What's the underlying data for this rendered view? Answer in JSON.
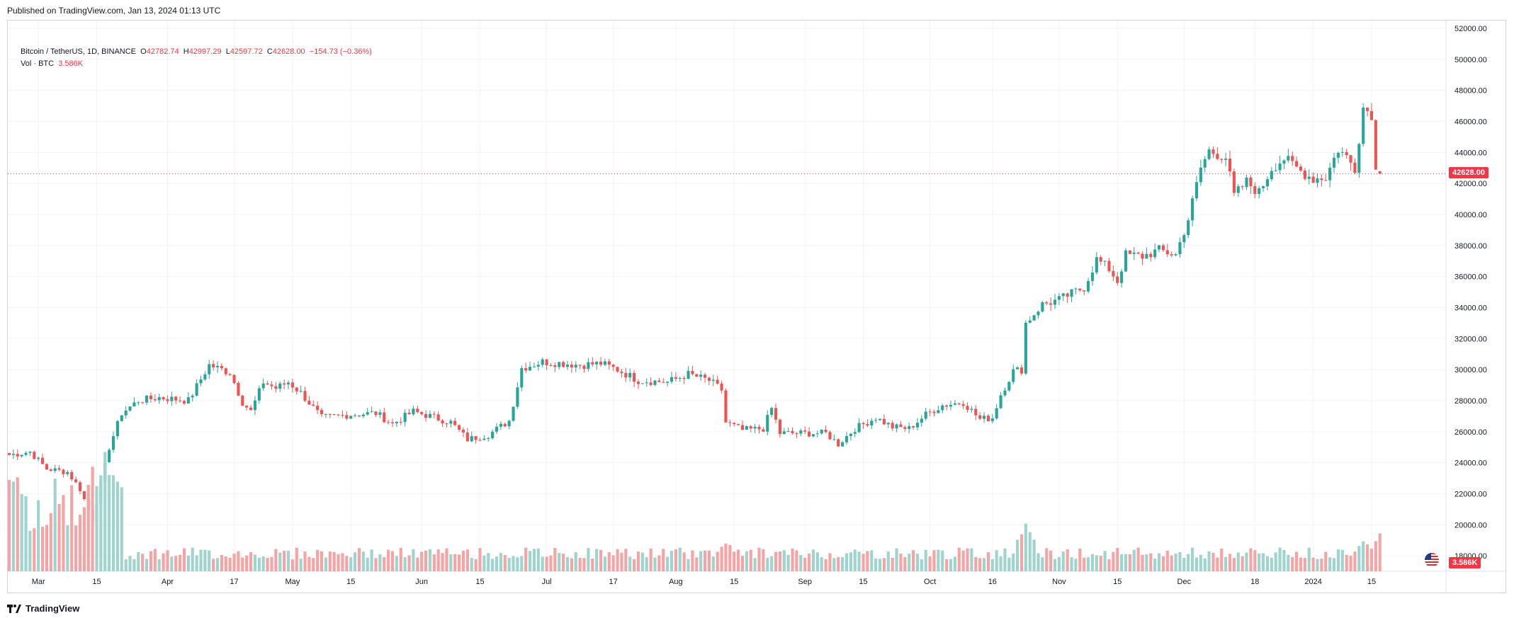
{
  "header": {
    "published": "Published on TradingView.com, Jan 13, 2024 01:13 UTC"
  },
  "legend": {
    "symbol": "Bitcoin / TetherUS, 1D, BINANCE",
    "open_label": "O",
    "open": "42782.74",
    "high_label": "H",
    "high": "42997.29",
    "low_label": "L",
    "low": "42597.72",
    "close_label": "C",
    "close": "42628.00",
    "change": "−154.73 (−0.36%)",
    "vol_label": "Vol · BTC",
    "vol_value": "3.586K"
  },
  "badges": {
    "last_price": "42628.00",
    "last_volume": "3.586K"
  },
  "footer": {
    "brand": "TradingView"
  },
  "colors": {
    "up": "#26a69a",
    "down": "#ef5350",
    "vol_up": "#9ed4cd",
    "vol_down": "#f5a3a3",
    "grid": "#f0f3fa",
    "price_line": "#f23645"
  },
  "icons": {
    "flag": "us-flag-icon",
    "logo": "tradingview-logo-icon"
  },
  "chart_data": {
    "type": "candlestick",
    "symbol": "BTCUSDT",
    "interval": "1D",
    "exchange": "BINANCE",
    "y_ticks": [
      18000,
      20000,
      22000,
      24000,
      26000,
      28000,
      30000,
      32000,
      34000,
      36000,
      38000,
      40000,
      42000,
      44000,
      46000,
      48000,
      50000,
      52000
    ],
    "y_tick_labels": [
      "18000.00",
      "20000.00",
      "22000.00",
      "24000.00",
      "26000.00",
      "28000.00",
      "30000.00",
      "32000.00",
      "34000.00",
      "36000.00",
      "38000.00",
      "40000.00",
      "42000.00",
      "44000.00",
      "46000.00",
      "48000.00",
      "50000.00",
      "52000.00"
    ],
    "ylim": [
      17000,
      52500
    ],
    "x_ticks": [
      {
        "label": "Mar",
        "day": 7
      },
      {
        "label": "15",
        "day": 21
      },
      {
        "label": "Apr",
        "day": 38
      },
      {
        "label": "17",
        "day": 54
      },
      {
        "label": "May",
        "day": 68
      },
      {
        "label": "15",
        "day": 82
      },
      {
        "label": "Jun",
        "day": 99
      },
      {
        "label": "15",
        "day": 113
      },
      {
        "label": "Jul",
        "day": 129
      },
      {
        "label": "17",
        "day": 145
      },
      {
        "label": "Aug",
        "day": 160
      },
      {
        "label": "15",
        "day": 174
      },
      {
        "label": "Sep",
        "day": 191
      },
      {
        "label": "15",
        "day": 205
      },
      {
        "label": "Oct",
        "day": 221
      },
      {
        "label": "16",
        "day": 236
      },
      {
        "label": "Nov",
        "day": 252
      },
      {
        "label": "15",
        "day": 266
      },
      {
        "label": "Dec",
        "day": 282
      },
      {
        "label": "18",
        "day": 299
      },
      {
        "label": "2024",
        "day": 313
      },
      {
        "label": "15",
        "day": 327
      }
    ],
    "last_close": 42628.0,
    "anchors": [
      {
        "d": 0,
        "p": 24500
      },
      {
        "d": 5,
        "p": 24700
      },
      {
        "d": 9,
        "p": 23600
      },
      {
        "d": 14,
        "p": 23400
      },
      {
        "d": 17,
        "p": 22300
      },
      {
        "d": 20,
        "p": 20300
      },
      {
        "d": 24,
        "p": 25000
      },
      {
        "d": 27,
        "p": 27200
      },
      {
        "d": 31,
        "p": 28000
      },
      {
        "d": 36,
        "p": 28200
      },
      {
        "d": 43,
        "p": 28000
      },
      {
        "d": 48,
        "p": 30300
      },
      {
        "d": 53,
        "p": 29800
      },
      {
        "d": 56,
        "p": 27900
      },
      {
        "d": 58,
        "p": 27300
      },
      {
        "d": 61,
        "p": 29200
      },
      {
        "d": 64,
        "p": 28800
      },
      {
        "d": 67,
        "p": 29200
      },
      {
        "d": 70,
        "p": 28500
      },
      {
        "d": 75,
        "p": 26900
      },
      {
        "d": 82,
        "p": 27100
      },
      {
        "d": 88,
        "p": 27200
      },
      {
        "d": 92,
        "p": 26500
      },
      {
        "d": 97,
        "p": 27300
      },
      {
        "d": 101,
        "p": 27000
      },
      {
        "d": 106,
        "p": 26600
      },
      {
        "d": 110,
        "p": 25500
      },
      {
        "d": 115,
        "p": 25800
      },
      {
        "d": 120,
        "p": 26700
      },
      {
        "d": 123,
        "p": 30100
      },
      {
        "d": 128,
        "p": 30500
      },
      {
        "d": 133,
        "p": 30400
      },
      {
        "d": 137,
        "p": 30300
      },
      {
        "d": 142,
        "p": 30400
      },
      {
        "d": 146,
        "p": 30000
      },
      {
        "d": 151,
        "p": 29300
      },
      {
        "d": 158,
        "p": 29200
      },
      {
        "d": 163,
        "p": 29700
      },
      {
        "d": 168,
        "p": 29300
      },
      {
        "d": 171,
        "p": 28700
      },
      {
        "d": 172,
        "p": 26600
      },
      {
        "d": 176,
        "p": 26100
      },
      {
        "d": 181,
        "p": 26200
      },
      {
        "d": 183,
        "p": 27500
      },
      {
        "d": 185,
        "p": 25900
      },
      {
        "d": 192,
        "p": 25900
      },
      {
        "d": 196,
        "p": 25900
      },
      {
        "d": 199,
        "p": 25200
      },
      {
        "d": 203,
        "p": 26200
      },
      {
        "d": 208,
        "p": 26900
      },
      {
        "d": 212,
        "p": 26300
      },
      {
        "d": 216,
        "p": 26200
      },
      {
        "d": 220,
        "p": 27100
      },
      {
        "d": 224,
        "p": 27700
      },
      {
        "d": 229,
        "p": 27900
      },
      {
        "d": 233,
        "p": 26800
      },
      {
        "d": 236,
        "p": 26900
      },
      {
        "d": 238,
        "p": 28400
      },
      {
        "d": 241,
        "p": 29900
      },
      {
        "d": 243,
        "p": 30000
      },
      {
        "d": 244,
        "p": 33000
      },
      {
        "d": 248,
        "p": 34200
      },
      {
        "d": 252,
        "p": 34500
      },
      {
        "d": 258,
        "p": 35300
      },
      {
        "d": 261,
        "p": 37100
      },
      {
        "d": 264,
        "p": 36500
      },
      {
        "d": 266,
        "p": 35700
      },
      {
        "d": 268,
        "p": 37400
      },
      {
        "d": 272,
        "p": 37300
      },
      {
        "d": 276,
        "p": 37700
      },
      {
        "d": 280,
        "p": 37400
      },
      {
        "d": 283,
        "p": 39700
      },
      {
        "d": 286,
        "p": 43000
      },
      {
        "d": 288,
        "p": 44100
      },
      {
        "d": 292,
        "p": 43700
      },
      {
        "d": 294,
        "p": 41200
      },
      {
        "d": 297,
        "p": 42100
      },
      {
        "d": 300,
        "p": 41400
      },
      {
        "d": 303,
        "p": 43000
      },
      {
        "d": 306,
        "p": 43600
      },
      {
        "d": 310,
        "p": 42800
      },
      {
        "d": 313,
        "p": 42300
      },
      {
        "d": 316,
        "p": 42400
      },
      {
        "d": 319,
        "p": 44200
      },
      {
        "d": 321,
        "p": 43700
      },
      {
        "d": 323,
        "p": 43000
      },
      {
        "d": 325,
        "p": 46900
      },
      {
        "d": 327,
        "p": 46500
      },
      {
        "d": 328,
        "p": 42800
      },
      {
        "d": 329,
        "p": 42628
      }
    ],
    "volume_k_approx": {
      "baseline": 1.2,
      "spikes": [
        {
          "d": 0,
          "v": 9.0
        },
        {
          "d": 20,
          "v": 10.5
        },
        {
          "d": 23,
          "v": 12.0
        },
        {
          "d": 244,
          "v": 4.5
        },
        {
          "d": 172,
          "v": 2.8
        },
        {
          "d": 325,
          "v": 2.9
        },
        {
          "d": 329,
          "v": 3.586
        }
      ]
    }
  }
}
